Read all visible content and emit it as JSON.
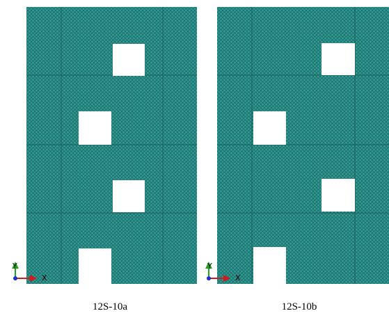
{
  "panels": [
    {
      "caption": "12S-10a",
      "axes": {
        "y": "Y",
        "x": "X"
      }
    },
    {
      "caption": "12S-10b",
      "axes": {
        "y": "Y",
        "x": "X"
      }
    }
  ]
}
